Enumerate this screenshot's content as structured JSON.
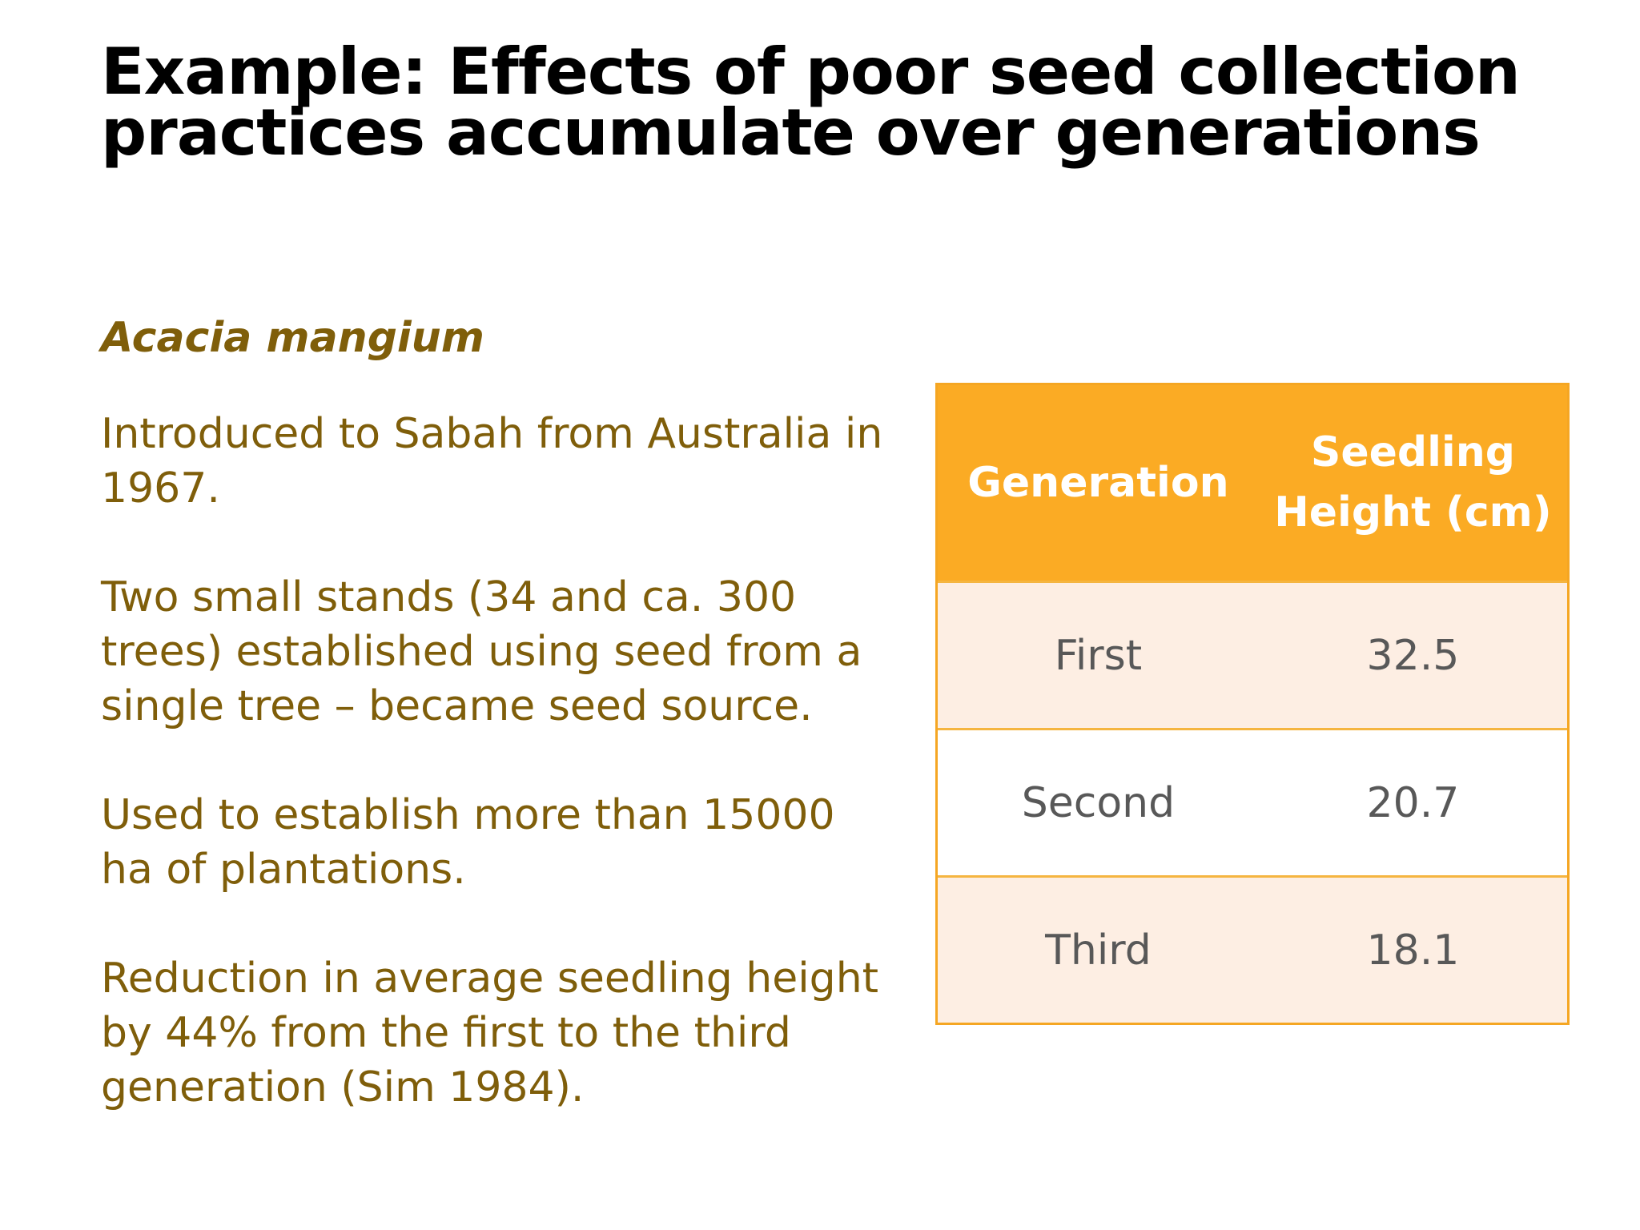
{
  "slide": {
    "title_line1": "Example: Effects of poor seed collection",
    "title_line2": "practices accumulate over generations",
    "species": "Acacia mangium",
    "paragraphs": [
      "Introduced to Sabah from Australia in 1967.",
      "Two small stands (34 and ca. 300 trees) established using seed from a single tree – became seed source.",
      "Used to establish more than 15000 ha of plantations.",
      "Reduction in average seedling height by 44% from the first to the third generation (Sim 1984)."
    ]
  },
  "table": {
    "headers": [
      "Generation",
      "Seedling Height (cm)"
    ],
    "rows": [
      [
        "First",
        "32.5"
      ],
      [
        "Second",
        "20.7"
      ],
      [
        "Third",
        "18.1"
      ]
    ]
  },
  "colors": {
    "accent": "#fbab24",
    "text_brown": "#7f5e0a",
    "row_tint": "#fdeee3",
    "cell_text": "#585858"
  }
}
